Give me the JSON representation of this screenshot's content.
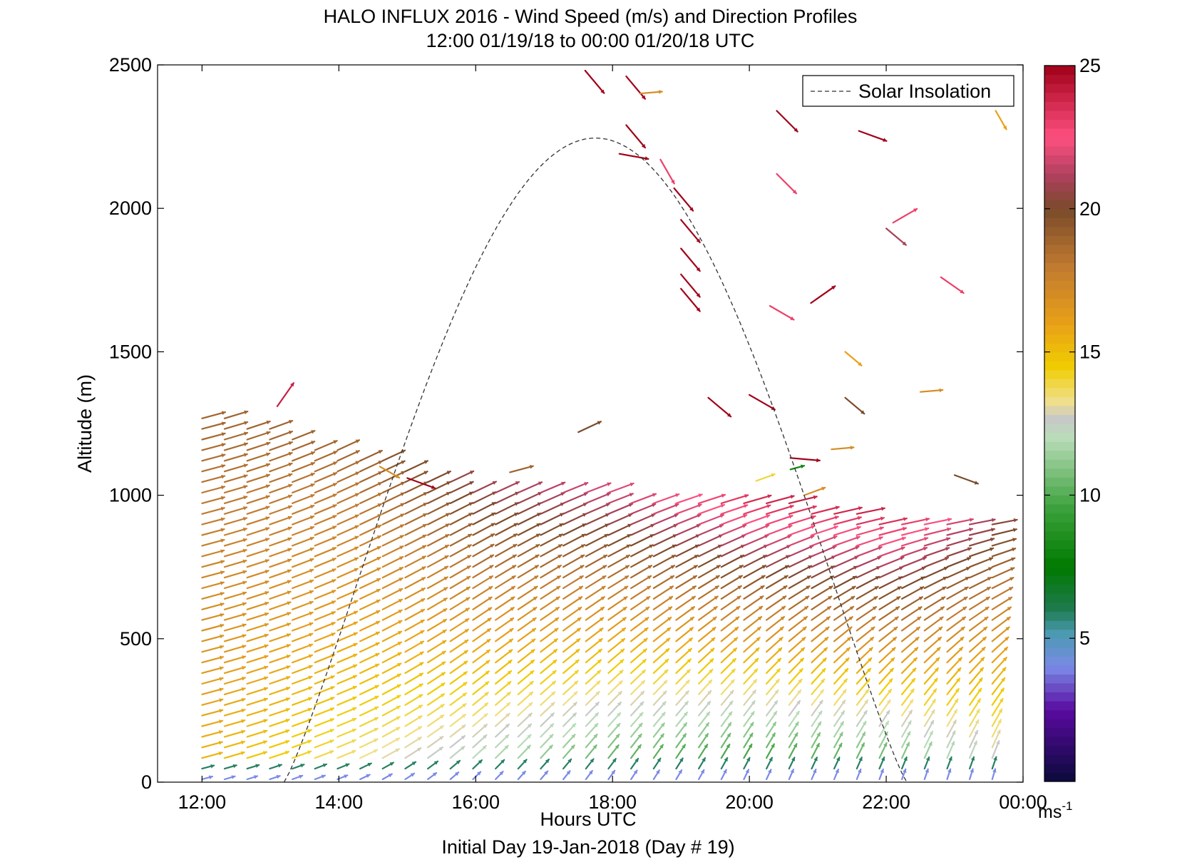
{
  "chart_data": {
    "type": "wind-barb-profile",
    "title": "HALO INFLUX 2016 - Wind Speed (m/s) and Direction Profiles",
    "subtitle": "12:00 01/19/18 to 00:00 01/20/18  UTC",
    "xlabel": "Hours UTC",
    "xlabel2": "Initial Day 19-Jan-2018 (Day # 19)",
    "ylabel": "Altitude (m)",
    "xlim": [
      11.35,
      24.0
    ],
    "ylim": [
      0,
      2500
    ],
    "x_ticks": [
      {
        "value": 12,
        "label": "12:00"
      },
      {
        "value": 14,
        "label": "14:00"
      },
      {
        "value": 16,
        "label": "16:00"
      },
      {
        "value": 18,
        "label": "18:00"
      },
      {
        "value": 20,
        "label": "20:00"
      },
      {
        "value": 22,
        "label": "22:00"
      },
      {
        "value": 24,
        "label": "00:00"
      }
    ],
    "y_ticks": [
      {
        "value": 0,
        "label": "0"
      },
      {
        "value": 500,
        "label": "500"
      },
      {
        "value": 1000,
        "label": "1000"
      },
      {
        "value": 1500,
        "label": "1500"
      },
      {
        "value": 2000,
        "label": "2000"
      },
      {
        "value": 2500,
        "label": "2500"
      }
    ],
    "legend": {
      "label": "Solar Insolation",
      "placement": "top-right",
      "line_style": "dashed"
    },
    "colorbar": {
      "range": [
        0,
        25
      ],
      "ticks": [
        {
          "value": 5,
          "label": "5"
        },
        {
          "value": 10,
          "label": "10"
        },
        {
          "value": 15,
          "label": "15"
        },
        {
          "value": 20,
          "label": "20"
        },
        {
          "value": 25,
          "label": "25"
        }
      ],
      "unit_label": "ms",
      "unit_exponent": "-1",
      "stops": [
        {
          "v": 0,
          "color": "#0a0a3a"
        },
        {
          "v": 2.5,
          "color": "#5a0aa0"
        },
        {
          "v": 4.0,
          "color": "#7a8ae6"
        },
        {
          "v": 5.2,
          "color": "#4a9ab0"
        },
        {
          "v": 6.0,
          "color": "#1f7a50"
        },
        {
          "v": 7.5,
          "color": "#007a00"
        },
        {
          "v": 9.5,
          "color": "#3aa03a"
        },
        {
          "v": 12.0,
          "color": "#b9dcb9"
        },
        {
          "v": 12.7,
          "color": "#c8c8c8"
        },
        {
          "v": 13.3,
          "color": "#f0e08a"
        },
        {
          "v": 14.5,
          "color": "#f0cc00"
        },
        {
          "v": 16.0,
          "color": "#e8a018"
        },
        {
          "v": 18.0,
          "color": "#c07a30"
        },
        {
          "v": 20.0,
          "color": "#7a4a2a"
        },
        {
          "v": 21.2,
          "color": "#b04060"
        },
        {
          "v": 22.5,
          "color": "#ff5080"
        },
        {
          "v": 25.0,
          "color": "#a00018"
        }
      ]
    },
    "solar_insolation": {
      "start_hour": 13.2,
      "end_hour": 22.3,
      "peak_hour": 17.75,
      "peak_altitude": 2245
    },
    "wind_profile": {
      "time_start": 12.0,
      "time_end": 23.75,
      "time_step": 0.33,
      "altitude_step": 37,
      "stations": [
        {
          "t": 12.0,
          "top": 1300,
          "speed_low": 15,
          "speed_high": 19,
          "dir_low": 255,
          "dir_high": 255
        },
        {
          "t": 14.0,
          "top": 1170,
          "speed_low": 13,
          "speed_high": 19,
          "dir_low": 248,
          "dir_high": 245
        },
        {
          "t": 16.0,
          "top": 1030,
          "speed_low": 11,
          "speed_high": 21,
          "dir_low": 225,
          "dir_high": 245
        },
        {
          "t": 18.0,
          "top": 1010,
          "speed_low": 9,
          "speed_high": 22,
          "dir_low": 215,
          "dir_high": 250
        },
        {
          "t": 20.0,
          "top": 990,
          "speed_low": 8,
          "speed_high": 24,
          "dir_low": 205,
          "dir_high": 255
        },
        {
          "t": 22.0,
          "top": 930,
          "speed_low": 9,
          "speed_high": 24,
          "dir_low": 200,
          "dir_high": 260
        },
        {
          "t": 23.75,
          "top": 910,
          "speed_low": 12,
          "speed_high": 20,
          "dir_low": 195,
          "dir_high": 260
        }
      ],
      "scattered": [
        {
          "t": 13.1,
          "alt": 1310,
          "speed": 24,
          "dir": 215
        },
        {
          "t": 14.6,
          "alt": 1100,
          "speed": 17,
          "dir": 300
        },
        {
          "t": 15.0,
          "alt": 1060,
          "speed": 25,
          "dir": 290
        },
        {
          "t": 16.5,
          "alt": 1080,
          "speed": 19,
          "dir": 255
        },
        {
          "t": 17.5,
          "alt": 1220,
          "speed": 20,
          "dir": 245
        },
        {
          "t": 17.6,
          "alt": 2480,
          "speed": 25,
          "dir": 320
        },
        {
          "t": 18.2,
          "alt": 2460,
          "speed": 25,
          "dir": 320
        },
        {
          "t": 18.4,
          "alt": 2400,
          "speed": 17,
          "dir": 265
        },
        {
          "t": 18.2,
          "alt": 2290,
          "speed": 25,
          "dir": 320
        },
        {
          "t": 18.1,
          "alt": 2190,
          "speed": 25,
          "dir": 280
        },
        {
          "t": 18.7,
          "alt": 2170,
          "speed": 23,
          "dir": 330
        },
        {
          "t": 18.9,
          "alt": 2070,
          "speed": 25,
          "dir": 320
        },
        {
          "t": 19.0,
          "alt": 1960,
          "speed": 25,
          "dir": 320
        },
        {
          "t": 19.0,
          "alt": 1860,
          "speed": 25,
          "dir": 320
        },
        {
          "t": 19.0,
          "alt": 1770,
          "speed": 25,
          "dir": 320
        },
        {
          "t": 19.0,
          "alt": 1720,
          "speed": 25,
          "dir": 320
        },
        {
          "t": 19.4,
          "alt": 1340,
          "speed": 25,
          "dir": 310
        },
        {
          "t": 20.0,
          "alt": 1350,
          "speed": 25,
          "dir": 300
        },
        {
          "t": 20.4,
          "alt": 2340,
          "speed": 25,
          "dir": 315
        },
        {
          "t": 20.4,
          "alt": 2120,
          "speed": 23,
          "dir": 315
        },
        {
          "t": 20.3,
          "alt": 1660,
          "speed": 23,
          "dir": 300
        },
        {
          "t": 20.1,
          "alt": 1050,
          "speed": 14,
          "dir": 250
        },
        {
          "t": 20.6,
          "alt": 1130,
          "speed": 25,
          "dir": 275
        },
        {
          "t": 20.6,
          "alt": 1090,
          "speed": 8,
          "dir": 255
        },
        {
          "t": 20.8,
          "alt": 1000,
          "speed": 17,
          "dir": 250
        },
        {
          "t": 20.9,
          "alt": 1670,
          "speed": 25,
          "dir": 235
        },
        {
          "t": 21.2,
          "alt": 1160,
          "speed": 17,
          "dir": 265
        },
        {
          "t": 21.4,
          "alt": 1500,
          "speed": 16,
          "dir": 310
        },
        {
          "t": 21.4,
          "alt": 1340,
          "speed": 20,
          "dir": 310
        },
        {
          "t": 21.6,
          "alt": 2270,
          "speed": 25,
          "dir": 290
        },
        {
          "t": 22.0,
          "alt": 1930,
          "speed": 21,
          "dir": 310
        },
        {
          "t": 22.1,
          "alt": 1950,
          "speed": 23,
          "dir": 240
        },
        {
          "t": 22.5,
          "alt": 1360,
          "speed": 17,
          "dir": 265
        },
        {
          "t": 22.8,
          "alt": 1760,
          "speed": 23,
          "dir": 305
        },
        {
          "t": 23.0,
          "alt": 1070,
          "speed": 20,
          "dir": 290
        },
        {
          "t": 23.6,
          "alt": 2340,
          "speed": 16,
          "dir": 330
        }
      ]
    }
  }
}
